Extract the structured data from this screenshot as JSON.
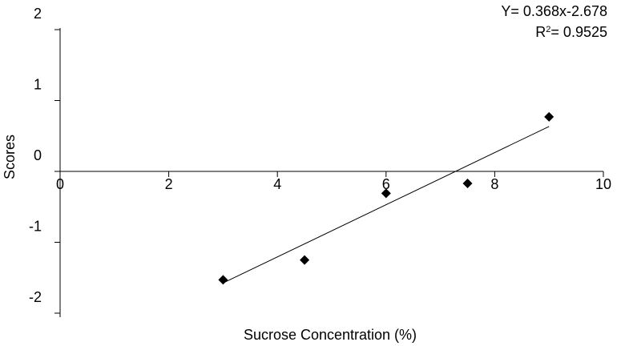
{
  "chart_data": {
    "type": "scatter",
    "xlabel": "Sucrose Concentration (%)",
    "ylabel": "Scores",
    "xlim": [
      0,
      10
    ],
    "ylim": [
      -2,
      2
    ],
    "x_ticks": [
      "0",
      "2",
      "4",
      "6",
      "8",
      "10"
    ],
    "y_ticks": [
      "2",
      "1",
      "0",
      "-1",
      "-2"
    ],
    "grid": false,
    "series": [
      {
        "marker": "diamond",
        "color": "#000000",
        "x": [
          3,
          4.5,
          6,
          7.5,
          9
        ],
        "y": [
          -1.53,
          -1.25,
          -0.31,
          -0.17,
          0.77
        ]
      }
    ],
    "trendline": {
      "slope": 0.368,
      "intercept": -2.678,
      "x_range": [
        3,
        9
      ],
      "equation": "Y= 0.368x-2.678",
      "r2_label": "R",
      "r2_sup": "2",
      "r2_value": "= 0.9525"
    }
  }
}
